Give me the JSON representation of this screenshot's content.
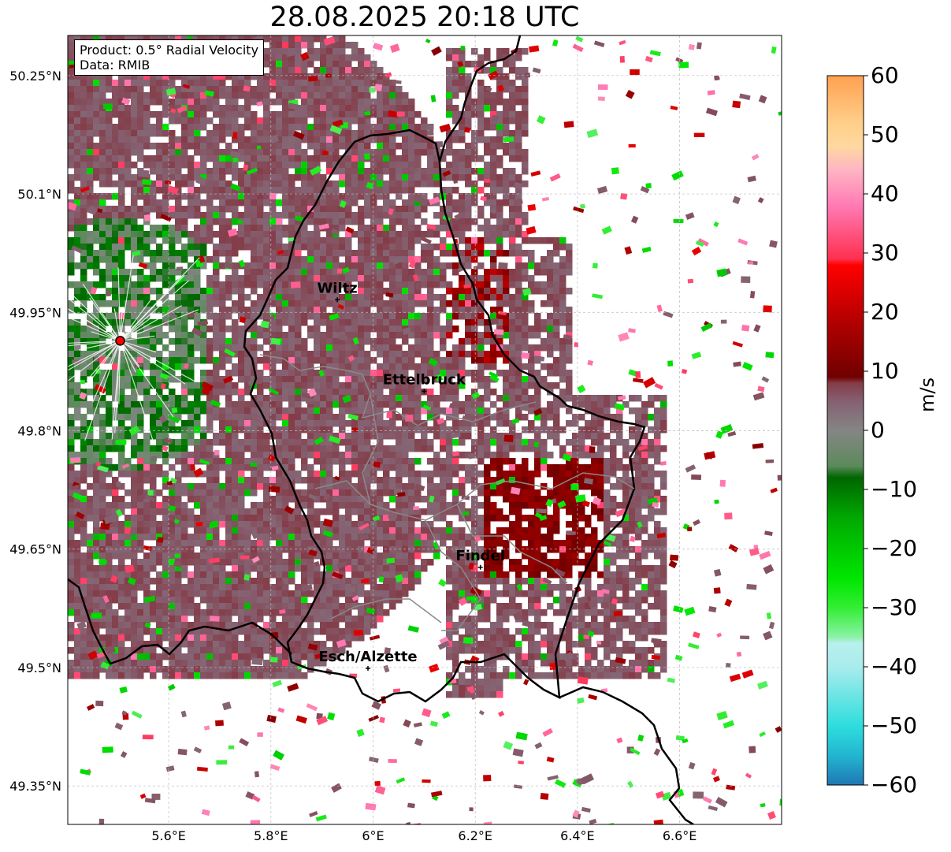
{
  "title": "28.08.2025 20:18 UTC",
  "info": {
    "product": "Product: 0.5° Radial Velocity",
    "data": "Data: RMIB"
  },
  "map": {
    "lon_range": [
      5.42,
      6.79
    ],
    "lat_range": [
      49.3,
      50.3
    ],
    "x_ticks": [
      {
        "lon": 5.6,
        "label": "5.6°E"
      },
      {
        "lon": 5.8,
        "label": "5.8°E"
      },
      {
        "lon": 6.0,
        "label": "6°E"
      },
      {
        "lon": 6.2,
        "label": "6.2°E"
      },
      {
        "lon": 6.4,
        "label": "6.4°E"
      },
      {
        "lon": 6.6,
        "label": "6.6°E"
      }
    ],
    "y_ticks": [
      {
        "lat": 50.25,
        "label": "50.25°N"
      },
      {
        "lat": 50.1,
        "label": "50.1°N"
      },
      {
        "lat": 49.95,
        "label": "49.95°N"
      },
      {
        "lat": 49.8,
        "label": "49.8°N"
      },
      {
        "lat": 49.65,
        "label": "49.65°N"
      },
      {
        "lat": 49.5,
        "label": "49.5°N"
      },
      {
        "lat": 49.35,
        "label": "49.35°N"
      }
    ],
    "radar_site": {
      "lon": 5.505,
      "lat": 49.914
    },
    "cities": [
      {
        "name": "Wiltz",
        "lon": 5.93,
        "lat": 49.966
      },
      {
        "name": "Ettelbruck",
        "lon": 6.1,
        "lat": 49.85
      },
      {
        "name": "Findel",
        "lon": 6.21,
        "lat": 49.627
      },
      {
        "name": "Esch/Alzette",
        "lon": 5.99,
        "lat": 49.499
      }
    ],
    "colors": {
      "border": "#000000",
      "inner_border": "#888888",
      "radar_marker": "#ff0000"
    }
  },
  "colorbar": {
    "label": "m/s",
    "range": [
      -60,
      60
    ],
    "ticks": [
      "60",
      "50",
      "40",
      "30",
      "20",
      "10",
      "0",
      "−10",
      "−20",
      "−30",
      "−40",
      "−50",
      "−60"
    ],
    "stops": [
      {
        "v": -60,
        "c": "#1f77b4"
      },
      {
        "v": -55,
        "c": "#22b6d0"
      },
      {
        "v": -50,
        "c": "#2edddd"
      },
      {
        "v": -40,
        "c": "#a9ecec"
      },
      {
        "v": -36,
        "c": "#b8f0ee"
      },
      {
        "v": -35,
        "c": "#8cf2a8"
      },
      {
        "v": -30,
        "c": "#33ee33"
      },
      {
        "v": -25,
        "c": "#00e600"
      },
      {
        "v": -15,
        "c": "#00aa00"
      },
      {
        "v": -8,
        "c": "#006600"
      },
      {
        "v": -6,
        "c": "#5c8a5c"
      },
      {
        "v": 0,
        "c": "#858585"
      },
      {
        "v": 5,
        "c": "#856070"
      },
      {
        "v": 8,
        "c": "#843c48"
      },
      {
        "v": 9,
        "c": "#700000"
      },
      {
        "v": 18,
        "c": "#b00000"
      },
      {
        "v": 28,
        "c": "#ff0000"
      },
      {
        "v": 29,
        "c": "#ff3050"
      },
      {
        "v": 38,
        "c": "#ff7ab4"
      },
      {
        "v": 44,
        "c": "#ffb4c4"
      },
      {
        "v": 48,
        "c": "#ffd8a0"
      },
      {
        "v": 52,
        "c": "#ffcf8a"
      },
      {
        "v": 60,
        "c": "#ffa050"
      }
    ]
  }
}
